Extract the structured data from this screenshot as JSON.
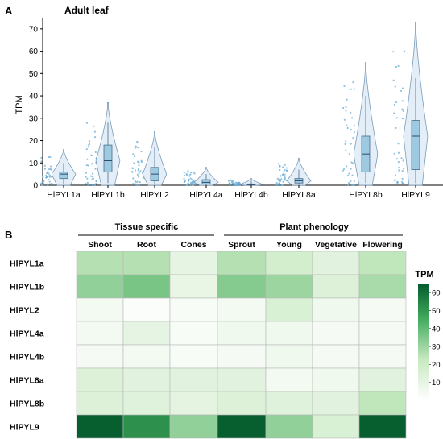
{
  "panel_a": {
    "letter": "A",
    "subtitle": "Adult leaf",
    "ylabel": "TPM"
  },
  "panel_b": {
    "letter": "B",
    "group_labels": [
      "Tissue specific",
      "Plant phenology"
    ],
    "legend_title": "TPM"
  },
  "chart_data": [
    {
      "type": "violin",
      "title": "Adult leaf",
      "xlabel": "",
      "ylabel": "TPM",
      "ylim": [
        0,
        75
      ],
      "yticks": [
        0,
        10,
        20,
        30,
        40,
        50,
        60,
        70
      ],
      "grid": false,
      "categories": [
        "HlPYL1a",
        "HlPYL1b",
        "HlPYL2",
        "HlPYL4a",
        "HlPYL4b",
        "HlPYL8a",
        "HlPYL8b",
        "HlPYL9"
      ],
      "series": [
        {
          "category": "HlPYL1a",
          "box": {
            "q1": 3,
            "median": 5,
            "q3": 6,
            "whisker_low": 0.5,
            "whisker_high": 10
          },
          "violin_max": 16
        },
        {
          "category": "HlPYL1b",
          "box": {
            "q1": 6,
            "median": 11,
            "q3": 18,
            "whisker_low": 1,
            "whisker_high": 28
          },
          "violin_max": 37
        },
        {
          "category": "HlPYL2",
          "box": {
            "q1": 2,
            "median": 5,
            "q3": 8,
            "whisker_low": 0.3,
            "whisker_high": 17
          },
          "violin_max": 24
        },
        {
          "category": "HlPYL4a",
          "box": {
            "q1": 0.5,
            "median": 1.3,
            "q3": 2.5,
            "whisker_low": 0,
            "whisker_high": 5
          },
          "violin_max": 8
        },
        {
          "category": "HlPYL4b",
          "box": {
            "q1": 0.1,
            "median": 0.3,
            "q3": 0.6,
            "whisker_low": 0,
            "whisker_high": 2
          },
          "violin_max": 3
        },
        {
          "category": "HlPYL8a",
          "box": {
            "q1": 1,
            "median": 2,
            "q3": 3,
            "whisker_low": 0.3,
            "whisker_high": 7
          },
          "violin_max": 12
        },
        {
          "category": "HlPYL8b",
          "box": {
            "q1": 6,
            "median": 14,
            "q3": 22,
            "whisker_low": 1,
            "whisker_high": 40
          },
          "violin_max": 55
        },
        {
          "category": "HlPYL9",
          "box": {
            "q1": 7,
            "median": 22,
            "q3": 29,
            "whisker_low": 1,
            "whisker_high": 48
          },
          "violin_max": 73
        }
      ]
    },
    {
      "type": "heatmap",
      "rows": [
        "HlPYL1a",
        "HlPYL1b",
        "HlPYL2",
        "HlPYL4a",
        "HlPYL4b",
        "HlPYL8a",
        "HlPYL8b",
        "HlPYL9"
      ],
      "columns": [
        "Shoot",
        "Root",
        "Cones",
        "Sprout",
        "Young",
        "Vegetative",
        "Flowering"
      ],
      "column_groups": [
        {
          "label": "Tissue specific",
          "columns": [
            "Shoot",
            "Root",
            "Cones"
          ]
        },
        {
          "label": "Plant phenology",
          "columns": [
            "Sprout",
            "Young",
            "Vegetative",
            "Flowering"
          ]
        }
      ],
      "values": [
        [
          26,
          26,
          10,
          26,
          18,
          12,
          24
        ],
        [
          32,
          36,
          9,
          34,
          30,
          14,
          28
        ],
        [
          5,
          2,
          3,
          5,
          16,
          6,
          4
        ],
        [
          5,
          10,
          3,
          6,
          6,
          4,
          4
        ],
        [
          4,
          5,
          3,
          4,
          6,
          4,
          4
        ],
        [
          14,
          12,
          12,
          12,
          5,
          6,
          12
        ],
        [
          14,
          13,
          11,
          14,
          13,
          12,
          24
        ],
        [
          64,
          52,
          32,
          64,
          32,
          16,
          64
        ]
      ],
      "colorbar": {
        "title": "TPM",
        "range": [
          0,
          65
        ],
        "ticks": [
          10,
          20,
          30,
          40,
          50,
          60
        ],
        "colors": [
          "#ffffff",
          "#045a2d"
        ]
      }
    }
  ]
}
